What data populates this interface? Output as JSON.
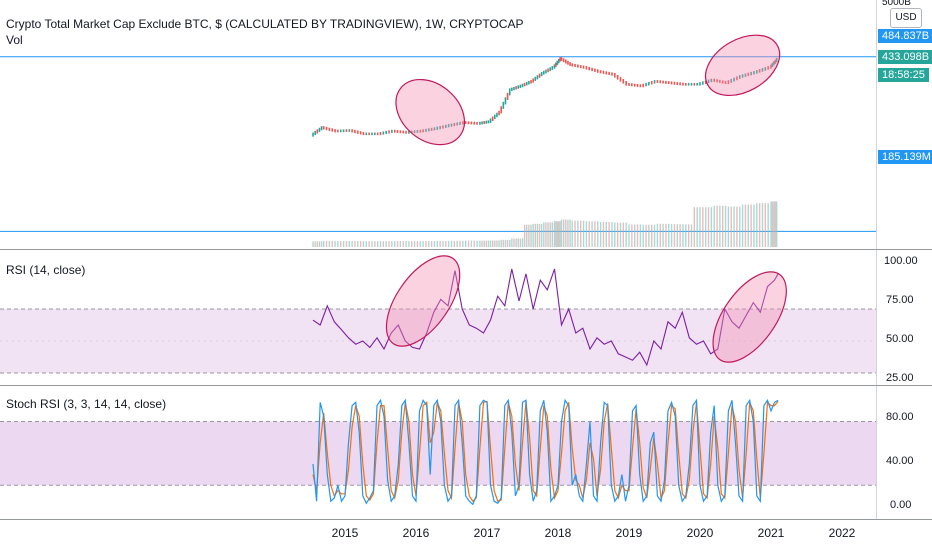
{
  "header": {
    "title": "Crypto Total Market Cap Exclude BTC, $ (CALCULATED BY TRADINGVIEW), 1W, CRYPTOCAP",
    "vol_label": "Vol",
    "currency_button": "USD",
    "top_tick": "5000B"
  },
  "price_pane": {
    "axis_labels": [],
    "badges": [
      {
        "text": "484.837B",
        "color": "#2196f3"
      },
      {
        "text": "433.098B",
        "color": "#26a69a"
      },
      {
        "text": "18:58:25",
        "color": "#26a69a"
      },
      {
        "text": "185.139M",
        "color": "#2196f3"
      }
    ]
  },
  "rsi_pane": {
    "title": "RSI (14, close)",
    "ticks": [
      "100.00",
      "75.00",
      "50.00",
      "25.00"
    ]
  },
  "stoch_pane": {
    "title": "Stoch RSI (3, 3, 14, 14, close)",
    "ticks": [
      "80.00",
      "40.00",
      "0.00"
    ]
  },
  "time_axis": {
    "labels": [
      "2015",
      "2016",
      "2017",
      "2018",
      "2019",
      "2020",
      "2021",
      "2022"
    ]
  },
  "colors": {
    "candle_up": "#26a69a",
    "candle_down": "#ef5350",
    "hline": "#2196f3",
    "rsi_line": "#7b1fa2",
    "rsi_band": "#e1bee7",
    "stoch_k": "#2196f3",
    "stoch_d": "#ff6d00",
    "highlight": "#f48fb1",
    "highlight_edge": "#c2185b"
  },
  "chart_data": [
    {
      "type": "line",
      "name": "price",
      "x": [
        2014.55,
        2014.7,
        2014.9,
        2015.1,
        2015.3,
        2015.5,
        2015.7,
        2015.9,
        2016.1,
        2016.3,
        2016.5,
        2016.7,
        2016.9,
        2017.05,
        2017.2,
        2017.35,
        2017.5,
        2017.65,
        2017.8,
        2017.95,
        2018.05,
        2018.2,
        2018.4,
        2018.6,
        2018.8,
        2019.0,
        2019.2,
        2019.4,
        2019.6,
        2019.8,
        2020.0,
        2020.2,
        2020.4,
        2020.6,
        2020.8,
        2021.0,
        2021.1
      ],
      "values": [
        14,
        20,
        17,
        17.5,
        15,
        15,
        17,
        16,
        17,
        19,
        22,
        25,
        24,
        26,
        40,
        110,
        130,
        160,
        230,
        300,
        450,
        340,
        300,
        250,
        220,
        140,
        130,
        160,
        150,
        140,
        140,
        170,
        150,
        200,
        240,
        300,
        433.1
      ],
      "hlines": [
        484.837,
        0.185
      ],
      "ylim": [
        0.1,
        5000
      ]
    },
    {
      "type": "line",
      "name": "RSI (14, close)",
      "x": [
        2014.55,
        2014.65,
        2014.75,
        2014.85,
        2014.95,
        2015.05,
        2015.15,
        2015.25,
        2015.35,
        2015.45,
        2015.55,
        2015.65,
        2015.75,
        2015.85,
        2015.95,
        2016.05,
        2016.15,
        2016.25,
        2016.35,
        2016.45,
        2016.55,
        2016.65,
        2016.75,
        2016.85,
        2016.95,
        2017.05,
        2017.15,
        2017.25,
        2017.35,
        2017.45,
        2017.55,
        2017.65,
        2017.75,
        2017.85,
        2017.95,
        2018.05,
        2018.15,
        2018.25,
        2018.35,
        2018.45,
        2018.55,
        2018.65,
        2018.75,
        2018.85,
        2018.95,
        2019.05,
        2019.15,
        2019.25,
        2019.35,
        2019.45,
        2019.55,
        2019.65,
        2019.75,
        2019.85,
        2019.95,
        2020.05,
        2020.15,
        2020.25,
        2020.35,
        2020.45,
        2020.55,
        2020.65,
        2020.75,
        2020.85,
        2020.95,
        2021.05,
        2021.1
      ],
      "values": [
        63,
        60,
        72,
        62,
        57,
        52,
        48,
        50,
        46,
        52,
        45,
        55,
        60,
        50,
        46,
        45,
        55,
        68,
        76,
        72,
        94,
        70,
        60,
        58,
        55,
        63,
        78,
        72,
        95,
        75,
        92,
        70,
        88,
        82,
        95,
        60,
        70,
        55,
        58,
        45,
        52,
        48,
        50,
        42,
        40,
        38,
        43,
        35,
        50,
        45,
        62,
        58,
        68,
        52,
        48,
        50,
        42,
        45,
        70,
        62,
        58,
        66,
        74,
        68,
        84,
        88,
        92
      ],
      "ylim": [
        25,
        100
      ],
      "band": [
        30,
        70
      ]
    },
    {
      "type": "line",
      "name": "Stoch RSI (3, 3, 14, 14, close)",
      "x": [
        2014.55,
        2014.6,
        2014.65,
        2014.7,
        2014.75,
        2014.8,
        2014.85,
        2014.9,
        2014.95,
        2015.0,
        2015.05,
        2015.1,
        2015.15,
        2015.2,
        2015.25,
        2015.3,
        2015.35,
        2015.4,
        2015.45,
        2015.5,
        2015.55,
        2015.6,
        2015.65,
        2015.7,
        2015.75,
        2015.8,
        2015.85,
        2015.9,
        2015.95,
        2016.0,
        2016.05,
        2016.1,
        2016.15,
        2016.2,
        2016.25,
        2016.3,
        2016.35,
        2016.4,
        2016.45,
        2016.5,
        2016.55,
        2016.6,
        2016.65,
        2016.7,
        2016.75,
        2016.8,
        2016.85,
        2016.9,
        2016.95,
        2017.0,
        2017.05,
        2017.1,
        2017.15,
        2017.2,
        2017.25,
        2017.3,
        2017.35,
        2017.4,
        2017.45,
        2017.5,
        2017.55,
        2017.6,
        2017.65,
        2017.7,
        2017.75,
        2017.8,
        2017.85,
        2017.9,
        2017.95,
        2018.0,
        2018.05,
        2018.1,
        2018.15,
        2018.2,
        2018.25,
        2018.3,
        2018.35,
        2018.4,
        2018.45,
        2018.5,
        2018.55,
        2018.6,
        2018.65,
        2018.7,
        2018.75,
        2018.8,
        2018.85,
        2018.9,
        2018.95,
        2019.0,
        2019.05,
        2019.1,
        2019.15,
        2019.2,
        2019.25,
        2019.3,
        2019.35,
        2019.4,
        2019.45,
        2019.5,
        2019.55,
        2019.6,
        2019.65,
        2019.7,
        2019.75,
        2019.8,
        2019.85,
        2019.9,
        2019.95,
        2020.0,
        2020.05,
        2020.1,
        2020.15,
        2020.2,
        2020.25,
        2020.3,
        2020.35,
        2020.4,
        2020.45,
        2020.5,
        2020.55,
        2020.6,
        2020.65,
        2020.7,
        2020.75,
        2020.8,
        2020.85,
        2020.9,
        2020.95,
        2021.0,
        2021.05,
        2021.1
      ],
      "k": [
        40,
        5,
        98,
        85,
        30,
        5,
        8,
        20,
        5,
        10,
        60,
        95,
        98,
        70,
        10,
        3,
        8,
        15,
        95,
        100,
        85,
        25,
        5,
        10,
        40,
        95,
        100,
        60,
        10,
        5,
        90,
        100,
        95,
        30,
        95,
        100,
        80,
        20,
        5,
        10,
        95,
        100,
        60,
        10,
        5,
        2,
        10,
        95,
        100,
        98,
        20,
        5,
        3,
        8,
        95,
        100,
        70,
        10,
        20,
        98,
        100,
        30,
        5,
        15,
        90,
        100,
        70,
        5,
        10,
        20,
        80,
        100,
        95,
        20,
        30,
        10,
        5,
        40,
        80,
        10,
        5,
        60,
        98,
        95,
        20,
        5,
        10,
        30,
        5,
        20,
        90,
        95,
        30,
        5,
        10,
        60,
        70,
        10,
        5,
        25,
        90,
        98,
        85,
        20,
        5,
        10,
        40,
        95,
        100,
        20,
        5,
        10,
        70,
        95,
        20,
        5,
        10,
        90,
        100,
        60,
        10,
        5,
        95,
        100,
        80,
        10,
        5,
        95,
        100,
        90,
        98,
        100
      ],
      "d": [
        30,
        15,
        60,
        88,
        50,
        20,
        10,
        15,
        12,
        12,
        35,
        75,
        95,
        85,
        40,
        10,
        6,
        12,
        60,
        95,
        95,
        55,
        15,
        8,
        25,
        70,
        98,
        80,
        30,
        10,
        50,
        95,
        98,
        60,
        70,
        98,
        90,
        50,
        15,
        8,
        55,
        98,
        80,
        30,
        10,
        5,
        8,
        55,
        98,
        99,
        55,
        15,
        5,
        6,
        55,
        98,
        85,
        40,
        15,
        60,
        99,
        65,
        15,
        10,
        55,
        95,
        85,
        35,
        8,
        15,
        50,
        90,
        98,
        55,
        25,
        20,
        8,
        25,
        60,
        45,
        10,
        35,
        80,
        97,
        55,
        15,
        8,
        20,
        15,
        15,
        55,
        92,
        60,
        18,
        8,
        35,
        65,
        40,
        8,
        15,
        60,
        95,
        92,
        50,
        12,
        8,
        25,
        70,
        98,
        55,
        12,
        8,
        40,
        85,
        55,
        12,
        8,
        50,
        95,
        80,
        35,
        8,
        50,
        98,
        90,
        45,
        8,
        50,
        98,
        95,
        95,
        99
      ],
      "ylim": [
        -8,
        105
      ],
      "band": [
        20,
        80
      ]
    }
  ],
  "highlights": [
    {
      "pane": "price",
      "x": 2016.2,
      "y": 40
    },
    {
      "pane": "price",
      "x": 2020.6,
      "y": 330
    },
    {
      "pane": "rsi",
      "x": 2016.1,
      "y": 75
    },
    {
      "pane": "rsi",
      "x": 2020.7,
      "y": 65
    }
  ]
}
